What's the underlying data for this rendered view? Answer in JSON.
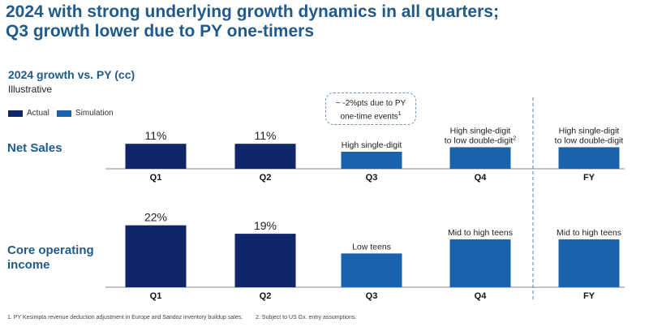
{
  "title_lines": [
    "2024 with strong underlying growth dynamics in all quarters;",
    "Q3 growth lower due to PY one-timers"
  ],
  "subtitle": "2024 growth vs. PY (cc)",
  "illustrative": "Illustrative",
  "legend": [
    {
      "label": "Actual",
      "color": "#10266a"
    },
    {
      "label": "Simulation",
      "color": "#1b62ad"
    }
  ],
  "callout": {
    "line1": "~ -2%pts due to PY",
    "line2": "one-time events",
    "sup": "1"
  },
  "footnotes": [
    "1. PY Kesimpta revenue deduction adjustment in Europe and Sandoz inventory buildup sales.",
    "2. Subject to US Gx. entry assumptions."
  ],
  "chart_data": {
    "type": "bar",
    "title": "2024 growth vs. PY (cc)",
    "categories": [
      "Q1",
      "Q2",
      "Q3",
      "Q4",
      "FY"
    ],
    "series": [
      {
        "name": "Net Sales",
        "row_label": [
          "Net Sales"
        ],
        "values": [
          11,
          11,
          7.5,
          9.5,
          9.5
        ],
        "labels": [
          {
            "text": "11%"
          },
          {
            "text": "11%"
          },
          {
            "text": "High single-digit"
          },
          {
            "text": "High single-digit",
            "text2": "to low double-digit",
            "sup": "2"
          },
          {
            "text": "High single-digit",
            "text2": "to low double-digit"
          }
        ],
        "kind": [
          "Actual",
          "Actual",
          "Simulation",
          "Simulation",
          "Simulation"
        ],
        "ylim": [
          0,
          12.5
        ]
      },
      {
        "name": "Core operating income",
        "row_label": [
          "Core operating",
          "income"
        ],
        "values": [
          22,
          19,
          12,
          17,
          17
        ],
        "labels": [
          {
            "text": "22%"
          },
          {
            "text": "19%"
          },
          {
            "text": "Low teens"
          },
          {
            "text": "Mid to high teens"
          },
          {
            "text": "Mid to high teens"
          }
        ],
        "kind": [
          "Actual",
          "Actual",
          "Simulation",
          "Simulation",
          "Simulation"
        ],
        "ylim": [
          0,
          24.5
        ]
      }
    ],
    "colors": {
      "Actual": "#10266a",
      "Simulation": "#1b62ad"
    },
    "separator_before": "FY"
  }
}
